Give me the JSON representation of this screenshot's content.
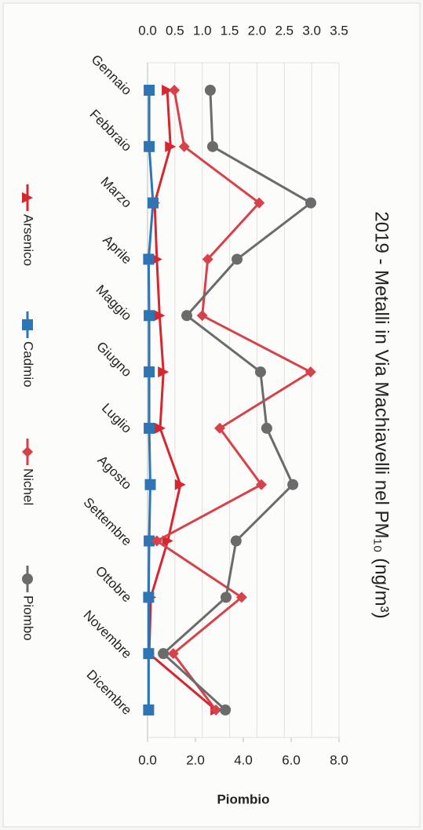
{
  "chart_data": {
    "type": "line",
    "title": "2019 - Metalli in Via Machiavelli nel PM₁₀ (ng/m³)",
    "categories": [
      "Gennaio",
      "Febbraio",
      "Marzo",
      "Aprile",
      "Maggio",
      "Giugno",
      "Luglio",
      "Agosto",
      "Settembre",
      "Ottobre",
      "Novembre",
      "Dicembre"
    ],
    "series": [
      {
        "name": "Arsenico",
        "color": "#d62630",
        "marker": "triangle",
        "values": [
          0.36,
          0.42,
          0.13,
          0.17,
          0.22,
          0.29,
          0.23,
          0.6,
          0.37,
          0.06,
          0.03,
          1.25
        ]
      },
      {
        "name": "Cadmio",
        "color": "#2e75b6",
        "marker": "square",
        "values": [
          0.03,
          0.03,
          0.1,
          0.02,
          0.03,
          0.03,
          0.03,
          0.05,
          0.03,
          0.02,
          0.02,
          0.02
        ]
      },
      {
        "name": "Nichel",
        "color": "#d8404a",
        "marker": "diamond",
        "values": [
          0.49,
          0.67,
          2.04,
          1.1,
          1.0,
          2.98,
          1.32,
          2.08,
          0.17,
          1.72,
          0.47,
          1.25
        ]
      },
      {
        "name": "Piombo",
        "color": "#6b6b6b",
        "marker": "circle",
        "axis": "y2",
        "values": [
          2.62,
          2.72,
          6.82,
          3.74,
          1.64,
          4.72,
          4.98,
          6.07,
          3.7,
          3.28,
          0.66,
          3.25
        ]
      }
    ],
    "ylim": [
      0,
      3.5
    ],
    "yticks": [
      {
        "value": 0,
        "label": "0.0"
      },
      {
        "value": 0.5,
        "label": "0.5"
      },
      {
        "value": 1,
        "label": "1.0"
      },
      {
        "value": 1.5,
        "label": "1.5"
      },
      {
        "value": 2,
        "label": "2.0"
      },
      {
        "value": 2.5,
        "label": "2.5"
      },
      {
        "value": 3,
        "label": "3.0"
      },
      {
        "value": 3.5,
        "label": "3.5"
      }
    ],
    "y2lim": [
      0,
      8
    ],
    "y2ticks": [
      {
        "value": 0,
        "label": "0.0"
      },
      {
        "value": 2,
        "label": "2.0"
      },
      {
        "value": 4,
        "label": "4.0"
      },
      {
        "value": 6,
        "label": "6.0"
      },
      {
        "value": 8,
        "label": "8.0"
      }
    ],
    "y2label": "Piombio",
    "grid": true,
    "legend": "bottom"
  }
}
